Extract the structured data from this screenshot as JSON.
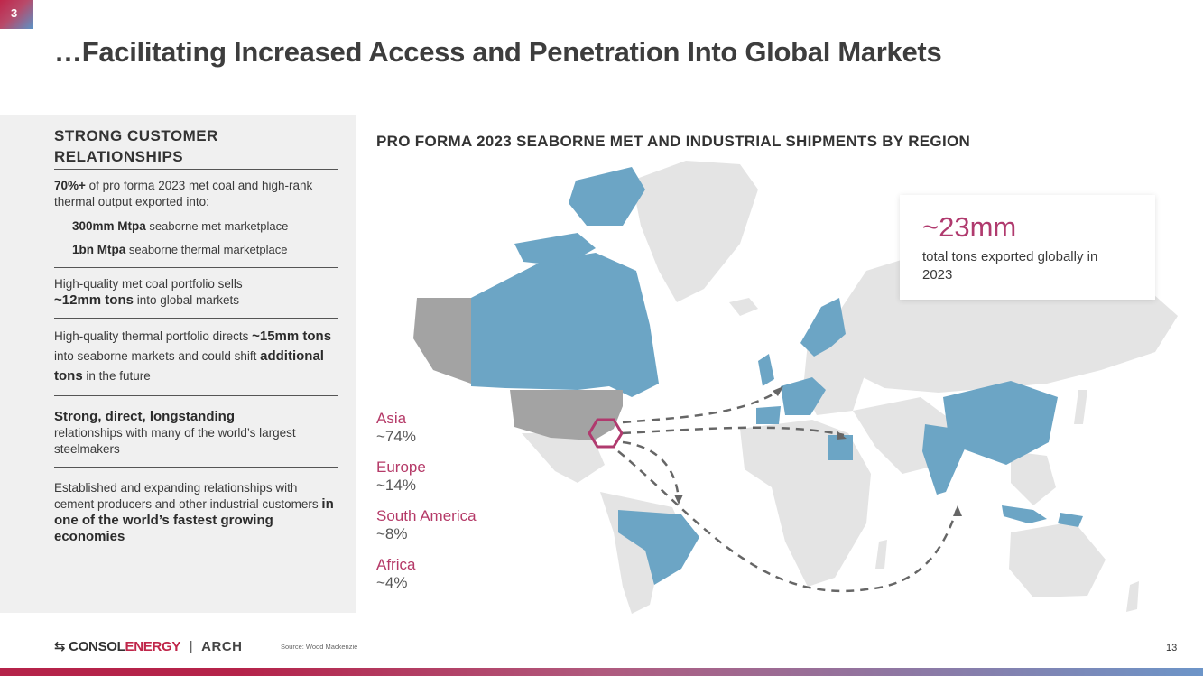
{
  "slide": {
    "number": "3",
    "title": "…Facilitating Increased Access and Penetration Into Global Markets",
    "page": "13",
    "source": "Source: Wood Mackenzie"
  },
  "left_panel": {
    "heading": "STRONG CUSTOMER RELATIONSHIPS",
    "b1": {
      "bold": "70%+",
      "text": " of pro forma 2023 met coal and high-rank thermal output exported into:",
      "sub1_bold": "300mm Mtpa",
      "sub1_text": " seaborne met marketplace",
      "sub2_bold": "1bn Mtpa",
      "sub2_text": " seaborne thermal marketplace"
    },
    "b2": {
      "text": "High-quality met coal portfolio sells",
      "bold": "~12mm tons",
      "text2": " into global markets"
    },
    "b3": {
      "text": "High-quality thermal portfolio directs ",
      "bold": "~15mm tons",
      "text2": " into seaborne markets and could shift ",
      "bold2": "additional tons",
      "text3": " in the future"
    },
    "b4": {
      "bold": "Strong, direct, longstanding",
      "text": "relationships with many of the world’s largest steelmakers"
    },
    "b5": {
      "text": "Established and expanding relationships with cement producers and other industrial customers ",
      "bold": "in one of the world’s fastest growing economies"
    }
  },
  "map": {
    "title": "PRO FORMA 2023 SEABORNE MET AND INDUSTRIAL SHIPMENTS BY REGION",
    "colors": {
      "highlight": "#6ca5c5",
      "us": "#a3a3a3",
      "land": "#e4e4e4",
      "accent": "#b03a6e",
      "arrow": "#666666"
    }
  },
  "stat": {
    "value": "~23mm",
    "desc": "total tons exported globally in 2023"
  },
  "legend": [
    {
      "name": "Asia",
      "value": "~74%"
    },
    {
      "name": "Europe",
      "value": "~14%"
    },
    {
      "name": "South America",
      "value": "~8%"
    },
    {
      "name": "Africa",
      "value": "~4%"
    }
  ],
  "footer": {
    "brand1a": "CONSOL",
    "brand1b": "ENERGY",
    "sep": "|",
    "brand2": "ARCH"
  }
}
